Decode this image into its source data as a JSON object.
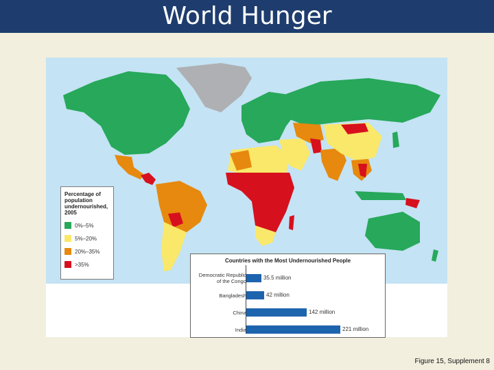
{
  "title": "World Hunger",
  "caption": "Figure 15, Supplement 8",
  "colors": {
    "ocean": "#c4e3f4",
    "no_data": "#aeb0b3",
    "band_1": "#27a85a",
    "band_2": "#f9e86a",
    "band_3": "#e6890e",
    "band_4": "#d7101e",
    "bar": "#1d64ae",
    "title_bar": "#1e3d6e"
  },
  "legend": {
    "title": "Percentage of population undernourished, 2005",
    "items": [
      {
        "label": "0%–5%",
        "color": "#27a85a"
      },
      {
        "label": "5%–20%",
        "color": "#f9e86a"
      },
      {
        "label": "20%–35%",
        "color": "#e6890e"
      },
      {
        "label": ">35%",
        "color": "#d7101e"
      }
    ]
  },
  "chart_data": {
    "type": "bar",
    "title": "Countries with the Most Undernourished People",
    "categories": [
      "Democratic Republic of the Congo",
      "Bangladesh",
      "China",
      "India"
    ],
    "category_lines": [
      [
        "Democratic Republic",
        "of the Congo"
      ],
      [
        "Bangladesh"
      ],
      [
        "China"
      ],
      [
        "India"
      ]
    ],
    "values": [
      35.5,
      42,
      142,
      221
    ],
    "value_labels": [
      "35.5 million",
      "42 million",
      "142 million",
      "221 million"
    ],
    "unit": "million",
    "orientation": "horizontal"
  }
}
